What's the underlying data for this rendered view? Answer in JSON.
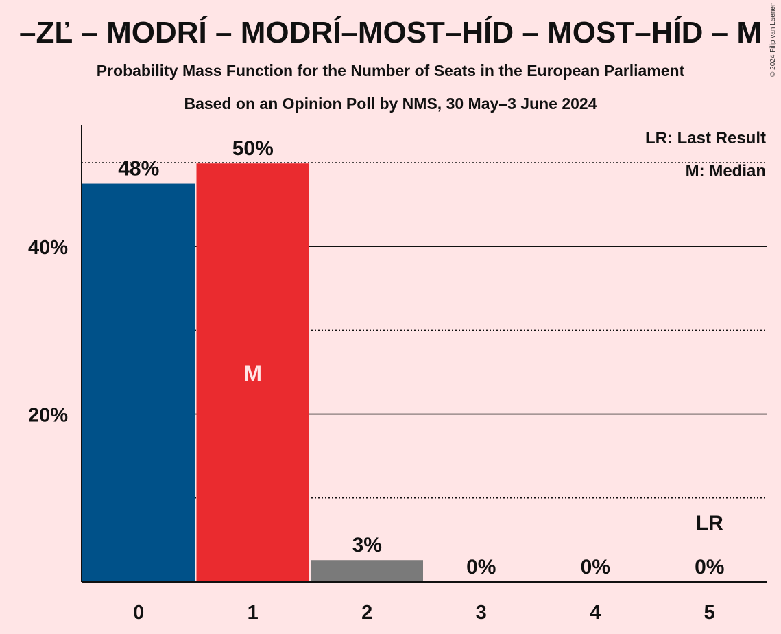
{
  "header": {
    "title": "–ZĽ – MODRÍ – MODRÍ–MOST–HÍD – MOST–HÍD – M",
    "subtitle": "Probability Mass Function for the Number of Seats in the European Parliament",
    "subtitle2": "Based on an Opinion Poll by NMS, 30 May–3 June 2024",
    "copyright": "© 2024 Filip van Laenen"
  },
  "legend": {
    "last_result": "LR: Last Result",
    "median": "M: Median"
  },
  "chart_data": {
    "type": "bar",
    "categories": [
      "0",
      "1",
      "2",
      "3",
      "4",
      "5"
    ],
    "values": [
      47.5,
      49.9,
      2.6,
      0,
      0,
      0
    ],
    "data_labels": [
      "48%",
      "50%",
      "3%",
      "0%",
      "0%",
      "0%"
    ],
    "bar_colors": [
      "#005189",
      "#EA2B2F",
      "#7A7A7A",
      "#7A7A7A",
      "#7A7A7A",
      "#7A7A7A"
    ],
    "y_ticks": [
      {
        "value": 20,
        "label": "20%"
      },
      {
        "value": 40,
        "label": "40%"
      }
    ],
    "ylim": [
      0,
      54.5
    ],
    "gridlines_solid": [
      20,
      40
    ],
    "gridlines_dotted": [
      10,
      30,
      50
    ],
    "median_index": 1,
    "median_label": "M",
    "last_result_index": 5,
    "last_result_label": "LR"
  }
}
